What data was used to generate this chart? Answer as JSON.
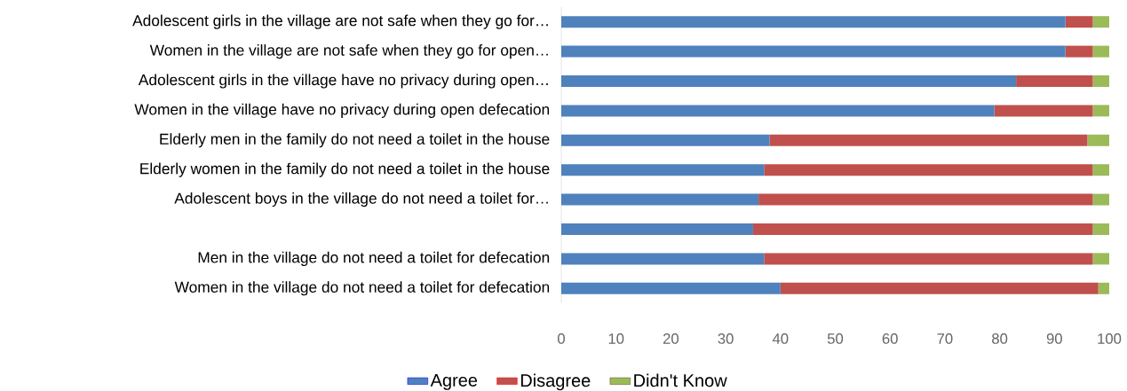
{
  "chart_data": {
    "type": "bar",
    "orientation": "horizontal",
    "stacked": true,
    "categories": [
      "Adolescent girls in the village are not safe when they go for…",
      "Women in the village are not safe when they go for open…",
      "Adolescent girls in the village have no privacy during open…",
      "Women in the village have no privacy during open defecation",
      "Elderly men in the family do not need a toilet in the house",
      "Elderly women in the family do not need a toilet in the house",
      "Adolescent boys in the village do not need a toilet for…",
      null,
      "Men in the village do not need a toilet for defecation",
      "Women in the village do not need a toilet for defecation"
    ],
    "series": [
      {
        "name": "Agree",
        "color": "#4f81bd",
        "values": [
          92,
          92,
          83,
          79,
          38,
          37,
          36,
          35,
          37,
          40
        ]
      },
      {
        "name": "Disagree",
        "color": "#c0504d",
        "values": [
          5,
          5,
          14,
          18,
          58,
          60,
          61,
          62,
          60,
          58
        ]
      },
      {
        "name": "Didn't Know",
        "color": "#9bbb59",
        "values": [
          3,
          3,
          3,
          3,
          4,
          3,
          3,
          3,
          3,
          2
        ]
      }
    ],
    "xlim": [
      0,
      100
    ],
    "xticks": [
      0,
      10,
      20,
      30,
      40,
      50,
      60,
      70,
      80,
      90,
      100
    ],
    "grid": false,
    "legend": "bottom"
  }
}
